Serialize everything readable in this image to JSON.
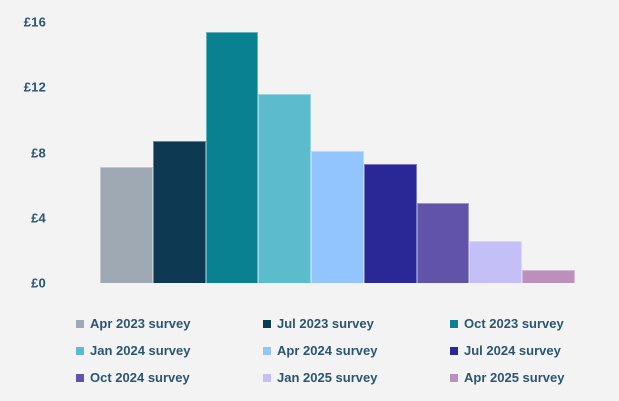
{
  "app": {
    "background_color": "#f3f3f4",
    "text_color": "#2b5570"
  },
  "chart_data": {
    "type": "bar",
    "title": "",
    "xlabel": "",
    "ylabel": "",
    "currency": "£",
    "categories": [
      "Apr 2023 survey",
      "Jul 2023 survey",
      "Oct 2023 survey",
      "Jan 2024 survey",
      "Apr 2024 survey",
      "Jul 2024 survey",
      "Oct 2024 survey",
      "Jan 2025 survey",
      "Apr 2025 survey"
    ],
    "values": [
      7.1,
      8.7,
      15.4,
      11.6,
      8.1,
      7.3,
      4.9,
      2.6,
      0.8
    ],
    "colors": [
      "#9fa9b3",
      "#0d3a52",
      "#0a8190",
      "#5cbcce",
      "#92c5fe",
      "#2a2897",
      "#6153aa",
      "#c4bff7",
      "#bb90bd"
    ],
    "y_ticks": [
      {
        "value": 0,
        "label": "£0"
      },
      {
        "value": 4,
        "label": "£4"
      },
      {
        "value": 8,
        "label": "£8"
      },
      {
        "value": 12,
        "label": "£12"
      },
      {
        "value": 16,
        "label": "£16"
      }
    ],
    "ylim": [
      0,
      16
    ],
    "grid": false,
    "legend_position": "bottom"
  }
}
